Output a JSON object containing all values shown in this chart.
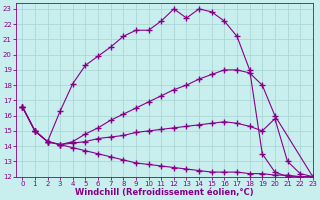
{
  "xlabel": "Windchill (Refroidissement éolien,°C)",
  "bg_color": "#c8eeee",
  "grid_color": "#a8d4d4",
  "line_color": "#880088",
  "xlim": [
    -0.5,
    23
  ],
  "ylim": [
    12,
    23.4
  ],
  "xticks": [
    0,
    1,
    2,
    3,
    4,
    5,
    6,
    7,
    8,
    9,
    10,
    11,
    12,
    13,
    14,
    15,
    16,
    17,
    18,
    19,
    20,
    21,
    22,
    23
  ],
  "yticks": [
    12,
    13,
    14,
    15,
    16,
    17,
    18,
    19,
    20,
    21,
    22,
    23
  ],
  "line1_x": [
    0,
    1,
    2,
    3,
    4,
    5,
    6,
    7,
    8,
    9,
    10,
    11,
    12,
    13,
    14,
    15,
    16,
    17,
    18,
    19,
    20,
    21,
    22,
    23
  ],
  "line1_y": [
    16.6,
    15.0,
    14.3,
    16.3,
    18.1,
    19.3,
    19.9,
    20.5,
    21.2,
    21.6,
    21.6,
    22.2,
    23.0,
    22.4,
    23.0,
    22.8,
    22.2,
    21.2,
    19.0,
    13.5,
    12.3,
    12.0,
    12.0,
    12.0
  ],
  "line1_markers_x": [
    0,
    1,
    2,
    3,
    4,
    5,
    6,
    7,
    8,
    9,
    10,
    11,
    12,
    13,
    14,
    15,
    16,
    17,
    18,
    19,
    20,
    21,
    22,
    23
  ],
  "line1_markers_y": [
    16.6,
    15.0,
    14.3,
    16.3,
    18.1,
    19.3,
    19.9,
    20.5,
    21.2,
    21.6,
    21.6,
    22.2,
    23.0,
    22.4,
    23.0,
    22.8,
    22.2,
    21.2,
    19.0,
    13.5,
    12.3,
    12.0,
    12.0,
    12.0
  ],
  "line2_x": [
    0,
    1,
    2,
    3,
    4,
    5,
    6,
    7,
    8,
    9,
    10,
    11,
    12,
    13,
    14,
    15,
    16,
    17,
    18,
    19,
    20,
    23
  ],
  "line2_y": [
    16.6,
    15.0,
    14.3,
    14.1,
    14.3,
    14.8,
    15.2,
    15.7,
    16.1,
    16.5,
    16.9,
    17.3,
    17.7,
    18.0,
    18.4,
    18.7,
    19.0,
    19.0,
    18.8,
    18.0,
    16.0,
    12.0
  ],
  "line3_x": [
    0,
    1,
    2,
    3,
    4,
    5,
    6,
    7,
    8,
    9,
    10,
    11,
    12,
    13,
    14,
    15,
    16,
    17,
    18,
    19,
    20,
    21,
    22,
    23
  ],
  "line3_y": [
    16.6,
    15.0,
    14.3,
    14.1,
    14.2,
    14.3,
    14.5,
    14.6,
    14.7,
    14.9,
    15.0,
    15.1,
    15.2,
    15.3,
    15.4,
    15.5,
    15.6,
    15.5,
    15.3,
    15.0,
    15.8,
    13.0,
    12.2,
    12.0
  ],
  "line4_x": [
    0,
    1,
    2,
    3,
    4,
    5,
    6,
    7,
    8,
    9,
    10,
    11,
    12,
    13,
    14,
    15,
    16,
    17,
    18,
    19,
    20,
    21,
    22,
    23
  ],
  "line4_y": [
    16.6,
    15.0,
    14.3,
    14.1,
    13.9,
    13.7,
    13.5,
    13.3,
    13.1,
    12.9,
    12.8,
    12.7,
    12.6,
    12.5,
    12.4,
    12.3,
    12.3,
    12.3,
    12.2,
    12.2,
    12.1,
    12.1,
    12.0,
    12.0
  ],
  "marker": "+",
  "markersize": 4,
  "markeredgewidth": 1.0,
  "linewidth": 0.8,
  "tick_fontsize": 5,
  "xlabel_fontsize": 6
}
